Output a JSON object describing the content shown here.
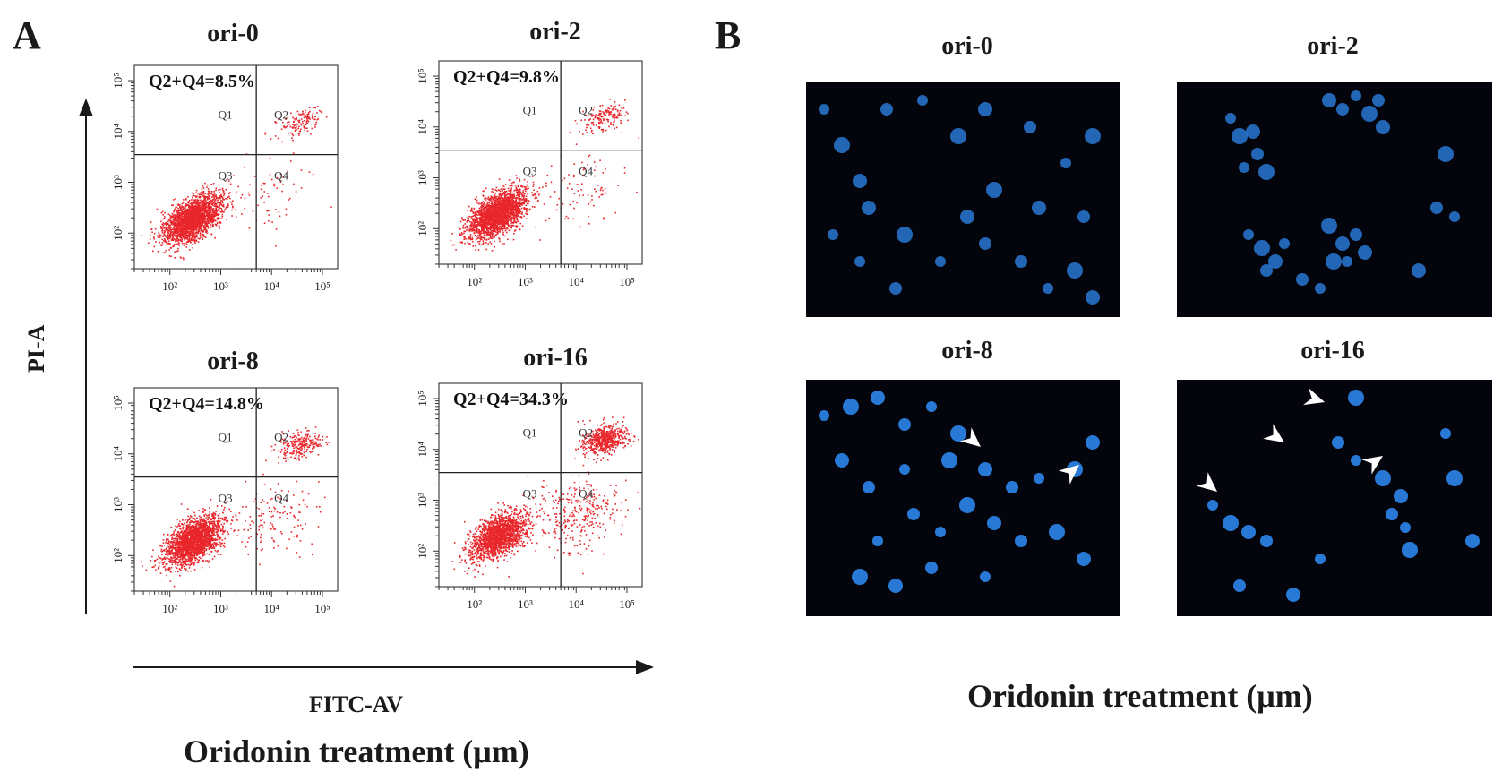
{
  "panels": {
    "a_letter": "A",
    "b_letter": "B"
  },
  "panel_a": {
    "x_axis_label": "FITC-AV",
    "y_axis_label": "PI-A",
    "caption": "Oridonin treatment (μm)"
  },
  "panel_b": {
    "caption": "Oridonin treatment (μm)",
    "images": [
      {
        "title": "ori-0"
      },
      {
        "title": "ori-2"
      },
      {
        "title": "ori-8"
      },
      {
        "title": "ori-16"
      }
    ]
  },
  "colors": {
    "dots": "#e8262b",
    "nuclei": "#2a7fe0",
    "background_dark": "#04040c"
  },
  "chart_data": [
    {
      "type": "scatter",
      "title": "ori-0",
      "annotation": "Q2+Q4=8.5%",
      "quadrants": [
        "Q1",
        "Q2",
        "Q3",
        "Q4"
      ],
      "xscale": "log",
      "yscale": "log",
      "xticks": [
        "10²",
        "10³",
        "10⁴",
        "10⁵"
      ],
      "yticks": [
        "10²",
        "10³",
        "10⁴",
        "10⁵"
      ],
      "gate": {
        "x": 5000,
        "y": 3500
      },
      "apoptosis_percent": 8.5
    },
    {
      "type": "scatter",
      "title": "ori-2",
      "annotation": "Q2+Q4=9.8%",
      "quadrants": [
        "Q1",
        "Q2",
        "Q3",
        "Q4"
      ],
      "xscale": "log",
      "yscale": "log",
      "xticks": [
        "10²",
        "10³",
        "10⁴",
        "10⁵"
      ],
      "yticks": [
        "10²",
        "10³",
        "10⁴",
        "10⁵"
      ],
      "gate": {
        "x": 5000,
        "y": 3500
      },
      "apoptosis_percent": 9.8
    },
    {
      "type": "scatter",
      "title": "ori-8",
      "annotation": "Q2+Q4=14.8%",
      "quadrants": [
        "Q1",
        "Q2",
        "Q3",
        "Q4"
      ],
      "xscale": "log",
      "yscale": "log",
      "xticks": [
        "10²",
        "10³",
        "10⁴",
        "10⁵"
      ],
      "yticks": [
        "10²",
        "10³",
        "10⁴",
        "10⁵"
      ],
      "gate": {
        "x": 5000,
        "y": 3500
      },
      "apoptosis_percent": 14.8
    },
    {
      "type": "scatter",
      "title": "ori-16",
      "annotation": "Q2+Q4=34.3%",
      "quadrants": [
        "Q1",
        "Q2",
        "Q3",
        "Q4"
      ],
      "xscale": "log",
      "yscale": "log",
      "xticks": [
        "10²",
        "10³",
        "10⁴",
        "10⁵"
      ],
      "yticks": [
        "10²",
        "10³",
        "10⁴",
        "10⁵"
      ],
      "gate": {
        "x": 5000,
        "y": 3500
      },
      "apoptosis_percent": 34.3
    }
  ]
}
